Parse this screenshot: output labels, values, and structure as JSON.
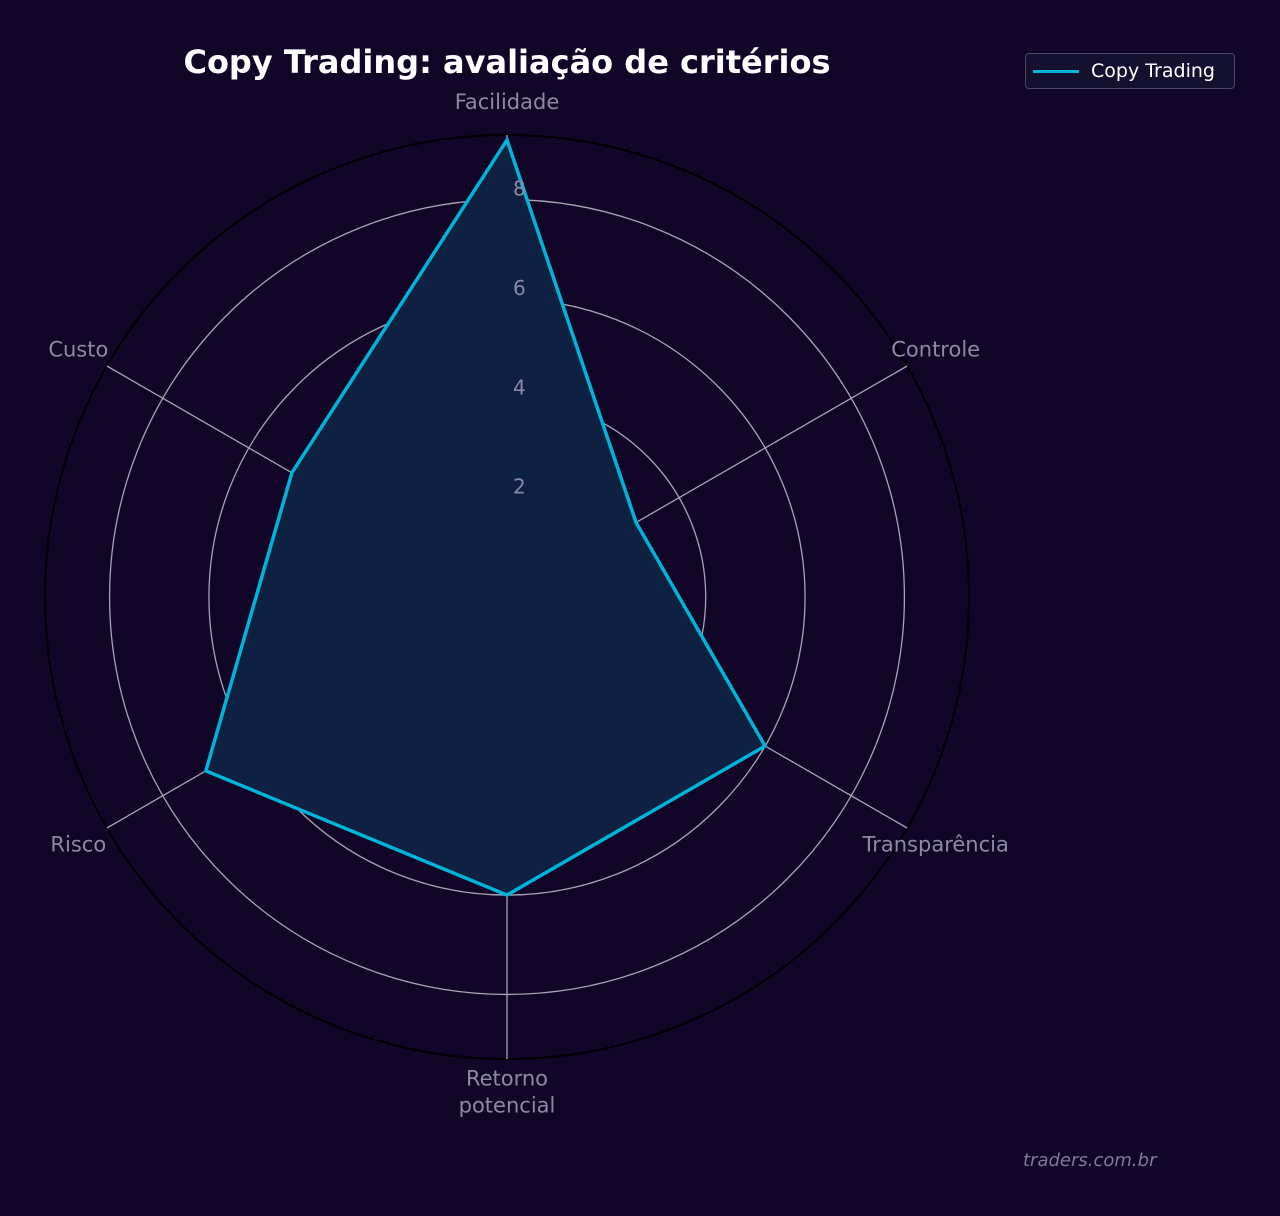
{
  "chart_data": {
    "type": "radar",
    "title": "Copy Trading: avaliação de critérios",
    "categories": [
      "Facilidade",
      "Controle",
      "Transparência",
      "Retorno\npotencial",
      "Risco",
      "Custo"
    ],
    "series": [
      {
        "name": "Copy Trading",
        "values": [
          9.2,
          3.0,
          6.0,
          6.0,
          7.0,
          5.0
        ]
      }
    ],
    "r_ticks": [
      2,
      4,
      6,
      8
    ],
    "r_range": [
      0,
      9.3
    ],
    "grid": true,
    "legend_position": "top-right"
  },
  "watermark": "traders.com.br",
  "colors": {
    "background": "#110628",
    "series_line": "#00b4d8",
    "series_fill": "#0e2142",
    "grid": "#a9a2b3",
    "outer_ring": "#000000",
    "category_label": "#8b8aa6",
    "title": "#ffffff"
  }
}
